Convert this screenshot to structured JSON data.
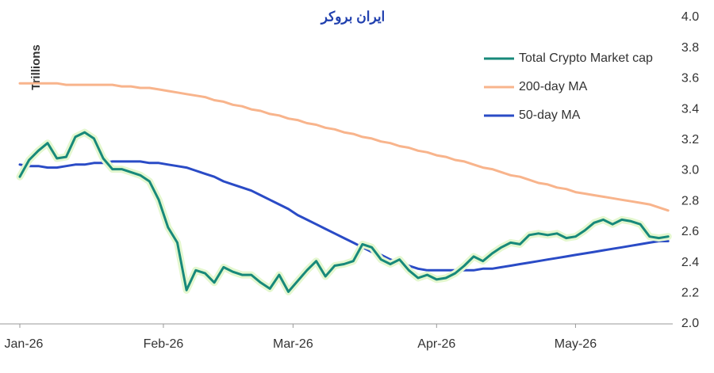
{
  "chart_data": {
    "type": "line",
    "logo": "ایران بروکر",
    "y_label": "Trillions",
    "x": [
      0,
      2,
      4,
      6,
      8,
      10,
      12,
      14,
      16,
      18,
      20,
      22,
      24,
      26,
      28,
      30,
      32,
      34,
      36,
      38,
      40,
      42,
      44,
      46,
      48,
      50,
      52,
      54,
      56,
      58,
      60,
      62,
      64,
      66,
      68,
      70,
      72,
      74,
      76,
      78,
      80,
      82,
      84,
      86,
      88,
      90,
      92,
      94,
      96,
      98,
      100,
      102,
      104,
      106,
      108,
      110,
      112,
      114,
      116,
      118,
      120,
      122,
      124,
      126,
      128,
      130,
      132,
      134,
      136,
      138,
      140
    ],
    "xlim": [
      0,
      141
    ],
    "xticks": [
      {
        "value": 0,
        "label": "Jan-26"
      },
      {
        "value": 31,
        "label": "Feb-26"
      },
      {
        "value": 59,
        "label": "Mar-26"
      },
      {
        "value": 90,
        "label": "Apr-26"
      },
      {
        "value": 120,
        "label": "May-26"
      }
    ],
    "ylim": [
      2.0,
      4.0
    ],
    "yticks": [
      {
        "value": 2.0,
        "label": "2.0"
      },
      2.2,
      2.4,
      2.6,
      2.8,
      {
        "value": 3.0,
        "label": "3.0"
      },
      3.2,
      3.4,
      3.6,
      3.8,
      {
        "value": 4.0,
        "label": "4.0"
      }
    ],
    "legend": "top-right",
    "grid": false,
    "series": [
      {
        "name": "Total Crypto Market cap",
        "color": "#17897a",
        "glow": true,
        "values": [
          2.96,
          3.07,
          3.13,
          3.18,
          3.08,
          3.09,
          3.22,
          3.25,
          3.21,
          3.08,
          3.01,
          3.01,
          2.99,
          2.97,
          2.93,
          2.81,
          2.63,
          2.53,
          2.22,
          2.35,
          2.33,
          2.27,
          2.37,
          2.34,
          2.32,
          2.32,
          2.27,
          2.23,
          2.32,
          2.21,
          2.28,
          2.35,
          2.41,
          2.31,
          2.38,
          2.39,
          2.41,
          2.52,
          2.5,
          2.42,
          2.39,
          2.42,
          2.35,
          2.3,
          2.32,
          2.29,
          2.3,
          2.33,
          2.38,
          2.44,
          2.41,
          2.46,
          2.5,
          2.53,
          2.52,
          2.58,
          2.59,
          2.58,
          2.59,
          2.56,
          2.57,
          2.61,
          2.66,
          2.68,
          2.65,
          2.68,
          2.67,
          2.65,
          2.57,
          2.56,
          2.57
        ]
      },
      {
        "name": "200-day MA",
        "color": "#f8b48c",
        "values": [
          3.57,
          3.57,
          3.57,
          3.57,
          3.57,
          3.56,
          3.56,
          3.56,
          3.56,
          3.56,
          3.56,
          3.55,
          3.55,
          3.54,
          3.54,
          3.53,
          3.52,
          3.51,
          3.5,
          3.49,
          3.48,
          3.46,
          3.45,
          3.43,
          3.42,
          3.4,
          3.39,
          3.37,
          3.36,
          3.34,
          3.33,
          3.31,
          3.3,
          3.28,
          3.27,
          3.25,
          3.24,
          3.22,
          3.21,
          3.19,
          3.18,
          3.16,
          3.15,
          3.13,
          3.12,
          3.1,
          3.09,
          3.07,
          3.06,
          3.04,
          3.02,
          3.01,
          2.99,
          2.97,
          2.96,
          2.94,
          2.92,
          2.91,
          2.89,
          2.88,
          2.86,
          2.85,
          2.84,
          2.83,
          2.82,
          2.81,
          2.8,
          2.79,
          2.78,
          2.76,
          2.74
        ]
      },
      {
        "name": "50-day MA",
        "color": "#2a4bc6",
        "values": [
          3.04,
          3.03,
          3.03,
          3.02,
          3.02,
          3.03,
          3.04,
          3.04,
          3.05,
          3.05,
          3.06,
          3.06,
          3.06,
          3.06,
          3.05,
          3.05,
          3.04,
          3.03,
          3.02,
          3.0,
          2.98,
          2.96,
          2.93,
          2.91,
          2.89,
          2.87,
          2.84,
          2.81,
          2.78,
          2.75,
          2.71,
          2.68,
          2.65,
          2.62,
          2.59,
          2.56,
          2.53,
          2.5,
          2.47,
          2.45,
          2.42,
          2.4,
          2.38,
          2.36,
          2.35,
          2.35,
          2.35,
          2.35,
          2.35,
          2.35,
          2.36,
          2.36,
          2.37,
          2.38,
          2.39,
          2.4,
          2.41,
          2.42,
          2.43,
          2.44,
          2.45,
          2.46,
          2.47,
          2.48,
          2.49,
          2.5,
          2.51,
          2.52,
          2.53,
          2.54,
          2.54
        ]
      }
    ]
  }
}
